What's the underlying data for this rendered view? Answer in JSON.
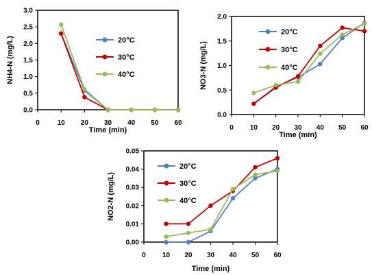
{
  "colors": {
    "20C": "#4f81bd",
    "30C": "#c00000",
    "40C": "#9bbb59"
  },
  "chart_data": [
    {
      "type": "line",
      "xlabel": "Time (min)",
      "ylabel": "NH4-N  (mg/L)",
      "xlim": [
        0,
        60
      ],
      "ylim": [
        0,
        3.0
      ],
      "xticks": [
        "0",
        "10",
        "20",
        "30",
        "40",
        "50",
        "60"
      ],
      "yticks": [
        "0.0",
        "0.5",
        "1.0",
        "1.5",
        "2.0",
        "2.5",
        "3.0"
      ],
      "grid": false,
      "legend": "top-right",
      "x": [
        10,
        20,
        30,
        40,
        50,
        60
      ],
      "series": [
        {
          "name": "20°C",
          "color": "#4f81bd",
          "values": [
            2.3,
            0.58,
            0.0,
            0.0,
            0.0,
            0.0
          ]
        },
        {
          "name": "30°C",
          "color": "#c00000",
          "values": [
            2.3,
            0.38,
            0.0,
            0.0,
            0.0,
            0.0
          ]
        },
        {
          "name": "40°C",
          "color": "#9bbb59",
          "values": [
            2.57,
            0.62,
            0.0,
            0.0,
            0.0,
            0.0
          ]
        }
      ]
    },
    {
      "type": "line",
      "xlabel": "Time (min)",
      "ylabel": "NO3-N  (mg/L)",
      "xlim": [
        0,
        60
      ],
      "ylim": [
        0,
        2.0
      ],
      "xticks": [
        "0",
        "10",
        "20",
        "30",
        "40",
        "50",
        "60"
      ],
      "yticks": [
        "0.0",
        "0.5",
        "1.0",
        "1.5",
        "2.0"
      ],
      "grid": false,
      "legend": "top-left",
      "x": [
        10,
        20,
        30,
        40,
        50,
        60
      ],
      "series": [
        {
          "name": "20°C",
          "color": "#4f81bd",
          "values": [
            0.22,
            0.57,
            0.76,
            1.03,
            1.56,
            1.87
          ]
        },
        {
          "name": "30°C",
          "color": "#c00000",
          "values": [
            0.22,
            0.55,
            0.78,
            1.4,
            1.77,
            1.7
          ]
        },
        {
          "name": "40°C",
          "color": "#9bbb59",
          "values": [
            0.44,
            0.6,
            0.67,
            1.24,
            1.63,
            1.85
          ]
        }
      ]
    },
    {
      "type": "line",
      "xlabel": "Time (min)",
      "ylabel": "NO2-N  (mg/L)",
      "xlim": [
        0,
        60
      ],
      "ylim": [
        0,
        0.05
      ],
      "xticks": [
        "0",
        "10",
        "20",
        "30",
        "40",
        "50",
        "60"
      ],
      "yticks": [
        "0.00",
        "0.01",
        "0.02",
        "0.03",
        "0.04",
        "0.05"
      ],
      "grid": false,
      "legend": "top-left",
      "x": [
        10,
        20,
        30,
        40,
        50,
        60
      ],
      "series": [
        {
          "name": "20°C",
          "color": "#4f81bd",
          "values": [
            0.0,
            0.0,
            0.006,
            0.024,
            0.035,
            0.04
          ]
        },
        {
          "name": "30°C",
          "color": "#c00000",
          "values": [
            0.01,
            0.01,
            0.02,
            0.028,
            0.041,
            0.046
          ]
        },
        {
          "name": "40°C",
          "color": "#9bbb59",
          "values": [
            0.003,
            0.005,
            0.007,
            0.029,
            0.037,
            0.039
          ]
        }
      ]
    }
  ]
}
